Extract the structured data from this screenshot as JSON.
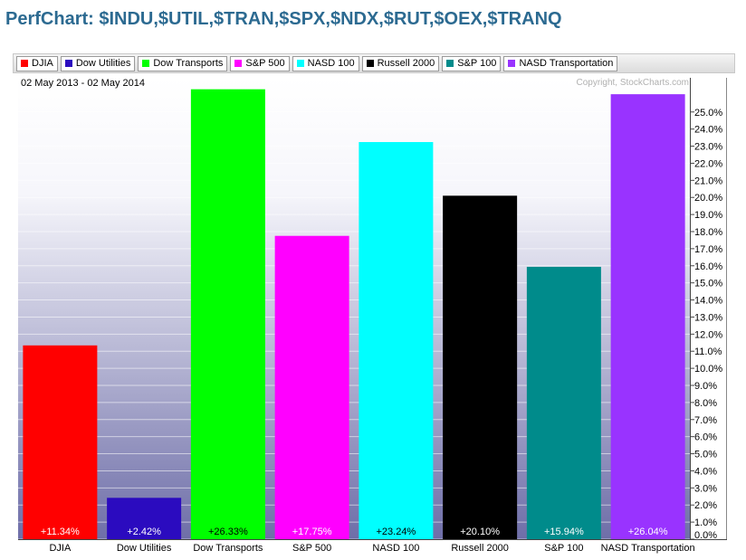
{
  "title": "PerfChart: $INDU,$UTIL,$TRAN,$SPX,$NDX,$RUT,$OEX,$TRANQ",
  "date_range": "02 May 2013 - 02 May 2014",
  "copyright": "Copyright, StockCharts.com",
  "legend": [
    {
      "label": "DJIA",
      "color": "#ff0000"
    },
    {
      "label": "Dow Utilities",
      "color": "#2b0bbf"
    },
    {
      "label": "Dow Transports",
      "color": "#00ff00"
    },
    {
      "label": "S&P 500",
      "color": "#ff00ff"
    },
    {
      "label": "NASD 100",
      "color": "#00ffff"
    },
    {
      "label": "Russell 2000",
      "color": "#000000"
    },
    {
      "label": "S&P 100",
      "color": "#008b8b"
    },
    {
      "label": "NASD Transportation",
      "color": "#9933ff"
    }
  ],
  "chart_data": {
    "type": "bar",
    "categories": [
      "DJIA",
      "Dow Utilities",
      "Dow Transports",
      "S&P 500",
      "NASD 100",
      "Russell 2000",
      "S&P 100",
      "NASD Transportation"
    ],
    "values": [
      11.34,
      2.42,
      26.33,
      17.75,
      23.24,
      20.1,
      15.94,
      26.04
    ],
    "value_labels": [
      "+11.34%",
      "+2.42%",
      "+26.33%",
      "+17.75%",
      "+23.24%",
      "+20.10%",
      "+15.94%",
      "+26.04%"
    ],
    "label_colors": [
      "#ffffff",
      "#ffffff",
      "#000000",
      "#ffffff",
      "#000000",
      "#ffffff",
      "#ffffff",
      "#ffffff"
    ],
    "colors": [
      "#ff0000",
      "#2b0bbf",
      "#00ff00",
      "#ff00ff",
      "#00ffff",
      "#000000",
      "#008b8b",
      "#9933ff"
    ],
    "ylim": [
      0,
      27
    ],
    "y_ticks": [
      0,
      1,
      2,
      3,
      4,
      5,
      6,
      7,
      8,
      9,
      10,
      11,
      12,
      13,
      14,
      15,
      16,
      17,
      18,
      19,
      20,
      21,
      22,
      23,
      24,
      25
    ],
    "y_tick_labels": [
      "0.0%",
      "1.0%",
      "2.0%",
      "3.0%",
      "4.0%",
      "5.0%",
      "6.0%",
      "7.0%",
      "8.0%",
      "9.0%",
      "10.0%",
      "11.0%",
      "12.0%",
      "13.0%",
      "14.0%",
      "15.0%",
      "16.0%",
      "17.0%",
      "18.0%",
      "19.0%",
      "20.0%",
      "21.0%",
      "22.0%",
      "23.0%",
      "24.0%",
      "25.0%"
    ],
    "grid": true,
    "legend_position": "top"
  }
}
